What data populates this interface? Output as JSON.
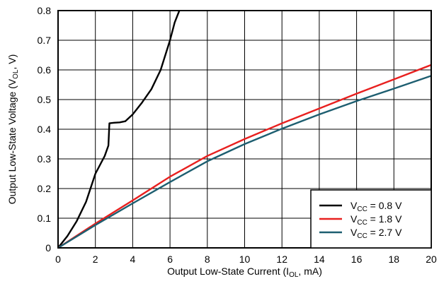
{
  "chart_data": {
    "type": "line",
    "title": "",
    "xlabel": {
      "pre": "Output Low-State Current (I",
      "sub": "OL",
      "post": ", mA)"
    },
    "ylabel": {
      "pre": "Output Low-State Voltage (V",
      "sub": "OL",
      "post": ", V)"
    },
    "xlim": [
      0,
      20
    ],
    "ylim": [
      0,
      0.8
    ],
    "xticks": [
      0,
      2,
      4,
      6,
      8,
      10,
      12,
      14,
      16,
      18,
      20
    ],
    "yticks": [
      0,
      0.1,
      0.2,
      0.3,
      0.4,
      0.5,
      0.6,
      0.7,
      0.8
    ],
    "xtick_labels": [
      "0",
      "2",
      "4",
      "6",
      "8",
      "10",
      "12",
      "14",
      "16",
      "18",
      "20"
    ],
    "ytick_labels": [
      "0",
      "0.1",
      "0.2",
      "0.3",
      "0.4",
      "0.5",
      "0.6",
      "0.7",
      "0.8"
    ],
    "grid": true,
    "legend_position": "bottom-right",
    "series": [
      {
        "name": {
          "pre": "V",
          "sub": "CC",
          "post": " = 0.8 V"
        },
        "color": "#000000",
        "points": [
          [
            0,
            0
          ],
          [
            0.5,
            0.04
          ],
          [
            1,
            0.09
          ],
          [
            1.5,
            0.155
          ],
          [
            2,
            0.25
          ],
          [
            2.5,
            0.31
          ],
          [
            2.7,
            0.345
          ],
          [
            2.75,
            0.42
          ],
          [
            3,
            0.422
          ],
          [
            3.3,
            0.423
          ],
          [
            3.6,
            0.427
          ],
          [
            4,
            0.45
          ],
          [
            4.5,
            0.49
          ],
          [
            5,
            0.535
          ],
          [
            5.5,
            0.6
          ],
          [
            6,
            0.7
          ],
          [
            6.25,
            0.76
          ],
          [
            6.5,
            0.8
          ]
        ]
      },
      {
        "name": {
          "pre": "V",
          "sub": "CC",
          "post": " = 1.8 V"
        },
        "color": "#e8201f",
        "points": [
          [
            0,
            0
          ],
          [
            2,
            0.082
          ],
          [
            4,
            0.16
          ],
          [
            6,
            0.24
          ],
          [
            8,
            0.31
          ],
          [
            10,
            0.367
          ],
          [
            12,
            0.42
          ],
          [
            14,
            0.47
          ],
          [
            16,
            0.52
          ],
          [
            18,
            0.568
          ],
          [
            20,
            0.617
          ]
        ]
      },
      {
        "name": {
          "pre": "V",
          "sub": "CC",
          "post": " = 2.7 V"
        },
        "color": "#1d5e70",
        "points": [
          [
            0,
            0
          ],
          [
            2,
            0.077
          ],
          [
            4,
            0.15
          ],
          [
            6,
            0.222
          ],
          [
            8,
            0.292
          ],
          [
            10,
            0.35
          ],
          [
            12,
            0.402
          ],
          [
            14,
            0.45
          ],
          [
            16,
            0.495
          ],
          [
            18,
            0.537
          ],
          [
            20,
            0.58
          ]
        ]
      }
    ]
  }
}
